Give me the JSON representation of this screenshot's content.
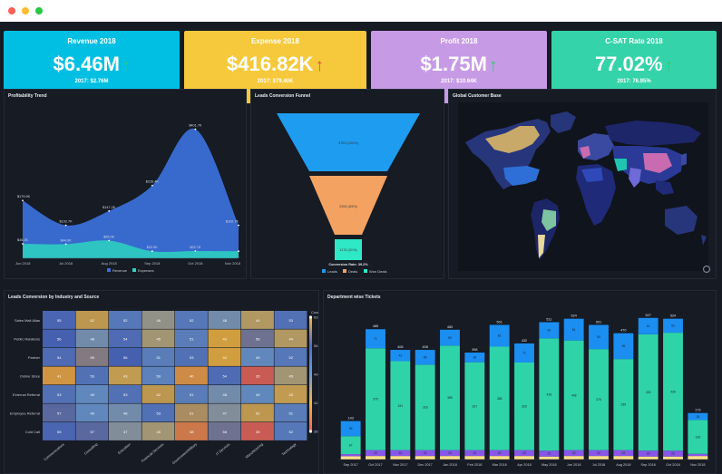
{
  "kpis": [
    {
      "title": "Revenue 2018",
      "value": "$6.46M",
      "arrow": "↑",
      "prev": "2017: $2.76M",
      "color": "#00bfe3",
      "arrow_color": "#2ecc71"
    },
    {
      "title": "Expense 2018",
      "value": "$416.82K",
      "arrow": "↑",
      "prev": "2017: $79.40K",
      "color": "#f5c93b",
      "arrow_color": "#e74c3c"
    },
    {
      "title": "Profit 2018",
      "value": "$1.75M",
      "arrow": "↑",
      "prev": "2017: $10.64K",
      "color": "#c79ae6",
      "arrow_color": "#2ecc71"
    },
    {
      "title": "C-SAT Rate 2018",
      "value": "77.02%",
      "arrow": "↑",
      "prev": "2017: 76.95%",
      "color": "#35d3a9",
      "arrow_color": "#2ecc71"
    }
  ],
  "panels": {
    "profit": {
      "title": "Profitability Trend"
    },
    "funnel": {
      "title": "Leads Conversion Funnel"
    },
    "map": {
      "title": "Global Customer Base"
    },
    "heat": {
      "title": "Leads Conversion by Industry and Source"
    },
    "tickets": {
      "title": "Department wise Tickets"
    }
  },
  "chart_data": [
    {
      "type": "area",
      "title": "Profitability Trend",
      "x": [
        "Jun 2018",
        "Jul 2018",
        "Aug 2018",
        "Sep 2018",
        "Oct 2018",
        "Nov 2018"
      ],
      "series": [
        {
          "name": "Revenue",
          "values": [
            179.9,
            102.7,
            147.2,
            226.4,
            401.7,
            102.7
          ],
          "color": "#3a6fd8"
        },
        {
          "name": "Expenses",
          "values": [
            45.2,
            44.0,
            55.0,
            22.0,
            22.7,
            22.0
          ],
          "color": "#2bd4c0"
        }
      ],
      "data_labels": [
        {
          "text": "$179.9K",
          "series": 0,
          "index": 0
        },
        {
          "text": "$102.7K",
          "series": 0,
          "index": 1
        },
        {
          "text": "$147.2K",
          "series": 0,
          "index": 2
        },
        {
          "text": "$226.4K",
          "series": 0,
          "index": 3
        },
        {
          "text": "$401.7K",
          "series": 0,
          "index": 4
        },
        {
          "text": "$102.7K",
          "series": 0,
          "index": 5
        },
        {
          "text": "$45.2K",
          "series": 1,
          "index": 0
        },
        {
          "text": "$44.0K",
          "series": 1,
          "index": 1
        },
        {
          "text": "$55.0K",
          "series": 1,
          "index": 2
        },
        {
          "text": "$22.0K",
          "series": 1,
          "index": 3
        },
        {
          "text": "$22.7K",
          "series": 1,
          "index": 4
        }
      ],
      "ylim": [
        0,
        440
      ],
      "legend": "bottom"
    },
    {
      "type": "funnel",
      "title": "Leads Conversion Funnel",
      "stages": [
        {
          "name": "Leads",
          "value": 3783,
          "label": "3783 (100%)",
          "color": "#1e9cf0"
        },
        {
          "name": "Deals",
          "value": 2394,
          "label": "2394 (63%)",
          "color": "#f4a261"
        },
        {
          "name": "Won Deals",
          "value": 1176,
          "label": "1176 (31%)",
          "color": "#2ee8c6"
        }
      ],
      "conversion_label": "Conversion Rate: 39.2%",
      "legend": "bottom"
    },
    {
      "type": "heatmap",
      "title": "Leads Conversion by Industry and Source",
      "rows": [
        "Sales Mail Alias",
        "Public Relations",
        "Partner",
        "Online Store",
        "External Referral",
        "Employee Referral",
        "Cold Call"
      ],
      "cols": [
        "Communications",
        "Consulting",
        "Education",
        "Financial Services",
        "Government/Military",
        "IT Services",
        "Manufacturing",
        "Technology"
      ],
      "values": [
        [
          55,
          62,
          52,
          46,
          52,
          48,
          44,
          53
        ],
        [
          56,
          48,
          54,
          45,
          51,
          42,
          58,
          44
        ],
        [
          54,
          59,
          56,
          51,
          53,
          42,
          49,
          52
        ],
        [
          41,
          53,
          43,
          50,
          40,
          54,
          35,
          45
        ],
        [
          53,
          49,
          53,
          62,
          51,
          48,
          49,
          43
        ],
        [
          57,
          49,
          48,
          53,
          61,
          47,
          62,
          51
        ],
        [
          55,
          57,
          47,
          45,
          38,
          58,
          35,
          52
        ]
      ],
      "scale": {
        "min": 35,
        "max": 63,
        "title": "Count",
        "ticks": [
          63,
          56,
          49,
          42,
          35
        ]
      }
    },
    {
      "type": "bar",
      "title": "Department wise Tickets",
      "categories": [
        "Sep 2017",
        "Oct 2017",
        "Nov 2017",
        "Dec 2017",
        "Jan 2018",
        "Feb 2018",
        "Mar 2018",
        "Apr 2018",
        "May 2018",
        "Jun 2018",
        "Jul 2018",
        "Aug 2018",
        "Sep 2018",
        "Oct 2018",
        "Nov 2018"
      ],
      "totals": [
        143,
        485,
        408,
        408,
        483,
        398,
        501,
        432,
        511,
        524,
        501,
        470,
        527,
        524,
        173
      ],
      "series": [
        {
          "name": "Dept A",
          "values": [
            12,
            13,
            13,
            13,
            13,
            13,
            13,
            13,
            11,
            13,
            13,
            13,
            11,
            11,
            13
          ],
          "color": "#ffe28a"
        },
        {
          "name": "Dept B",
          "values": [
            8,
            22,
            22,
            22,
            22,
            22,
            22,
            22,
            22,
            22,
            22,
            22,
            22,
            22,
            8
          ],
          "color": "#8856e8"
        },
        {
          "name": "Dept C",
          "values": [
            67,
            379,
            331,
            318,
            389,
            327,
            385,
            326,
            418,
            408,
            376,
            339,
            433,
            439,
            126
          ],
          "color": "#2ed4a8"
        },
        {
          "name": "Dept D",
          "values": [
            56,
            71,
            42,
            55,
            59,
            36,
            81,
            71,
            60,
            81,
            90,
            96,
            61,
            52,
            26
          ],
          "color": "#1b8ef2"
        }
      ],
      "segment_labels": [
        [
          12,
          8,
          67,
          56
        ],
        [
          13,
          22,
          379,
          71
        ],
        [
          13,
          22,
          331,
          42
        ],
        [
          13,
          22,
          318,
          55
        ],
        [
          13,
          22,
          389,
          59
        ],
        [
          13,
          22,
          327,
          36
        ],
        [
          13,
          22,
          385,
          81
        ],
        [
          13,
          22,
          326,
          71
        ],
        [
          11,
          22,
          418,
          60
        ],
        [
          13,
          22,
          408,
          81
        ],
        [
          13,
          22,
          376,
          90
        ],
        [
          13,
          22,
          339,
          96
        ],
        [
          11,
          22,
          433,
          61
        ],
        [
          11,
          22,
          439,
          52
        ],
        [
          13,
          8,
          126,
          26
        ]
      ],
      "ylim": [
        0,
        560
      ],
      "legend": "none"
    }
  ]
}
